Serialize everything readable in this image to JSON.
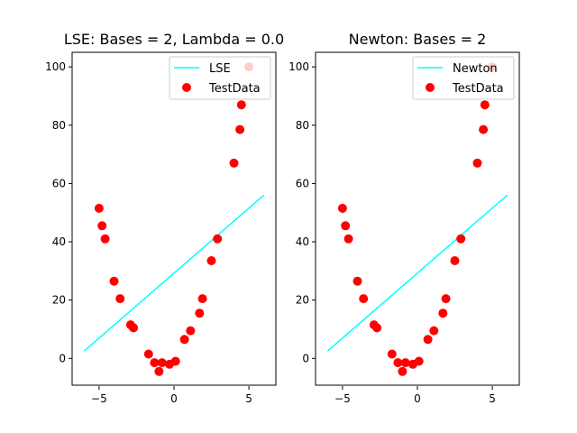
{
  "chart_data": [
    {
      "type": "scatter",
      "title": "LSE: Bases = 2, Lambda = 0.0",
      "xlabel": "",
      "ylabel": "",
      "xlim": [
        -6.8,
        6.8
      ],
      "ylim": [
        -9.5,
        105
      ],
      "xticks": [
        -5,
        0,
        5
      ],
      "xtick_labels": [
        "−5",
        "0",
        "5"
      ],
      "yticks": [
        0,
        20,
        40,
        60,
        80,
        100
      ],
      "ytick_labels": [
        "0",
        "20",
        "40",
        "60",
        "80",
        "100"
      ],
      "grid": false,
      "legend_position": "top-right",
      "series": [
        {
          "name": "LSE",
          "kind": "line",
          "color": "#00ffff",
          "x": [
            -6,
            6
          ],
          "y": [
            2.5,
            56
          ]
        },
        {
          "name": "TestData",
          "kind": "scatter",
          "color": "#ff0000",
          "x": [
            -5.0,
            -4.8,
            -4.6,
            -4.0,
            -3.6,
            -2.9,
            -2.7,
            -1.7,
            -1.3,
            -1.0,
            -0.8,
            -0.3,
            0.1,
            0.7,
            1.1,
            1.7,
            1.9,
            2.5,
            2.9,
            4.0,
            4.4,
            4.5,
            5.0
          ],
          "y": [
            51.5,
            45.5,
            41,
            26.5,
            20.5,
            11.5,
            10.5,
            1.5,
            -1.5,
            -4.5,
            -1.5,
            -2,
            -1,
            6.5,
            9.5,
            15.5,
            20.5,
            33.5,
            41,
            67,
            78.5,
            87,
            100
          ]
        }
      ]
    },
    {
      "type": "scatter",
      "title": "Newton: Bases = 2",
      "xlabel": "",
      "ylabel": "",
      "xlim": [
        -6.8,
        6.8
      ],
      "ylim": [
        -9.5,
        105
      ],
      "xticks": [
        -5,
        0,
        5
      ],
      "xtick_labels": [
        "−5",
        "0",
        "5"
      ],
      "yticks": [
        0,
        20,
        40,
        60,
        80,
        100
      ],
      "ytick_labels": [
        "0",
        "20",
        "40",
        "60",
        "80",
        "100"
      ],
      "grid": false,
      "legend_position": "top-right",
      "series": [
        {
          "name": "Newton",
          "kind": "line",
          "color": "#00ffff",
          "x": [
            -6,
            6
          ],
          "y": [
            2.5,
            56
          ]
        },
        {
          "name": "TestData",
          "kind": "scatter",
          "color": "#ff0000",
          "x": [
            -5.0,
            -4.8,
            -4.6,
            -4.0,
            -3.6,
            -2.9,
            -2.7,
            -1.7,
            -1.3,
            -1.0,
            -0.8,
            -0.3,
            0.1,
            0.7,
            1.1,
            1.7,
            1.9,
            2.5,
            2.9,
            4.0,
            4.4,
            4.5,
            5.0
          ],
          "y": [
            51.5,
            45.5,
            41,
            26.5,
            20.5,
            11.5,
            10.5,
            1.5,
            -1.5,
            -4.5,
            -1.5,
            -2,
            -1,
            6.5,
            9.5,
            15.5,
            20.5,
            33.5,
            41,
            67,
            78.5,
            87,
            100
          ]
        }
      ]
    }
  ]
}
